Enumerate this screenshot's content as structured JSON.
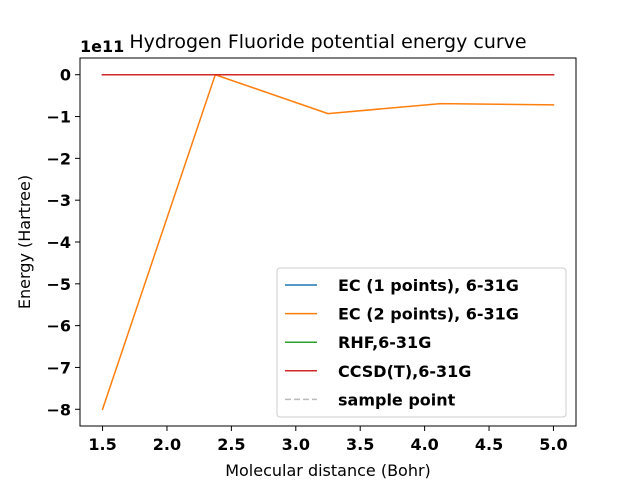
{
  "chart_data": {
    "type": "line",
    "title": "Hydrogen Fluoride potential energy curve",
    "xlabel": "Molecular distance (Bohr)",
    "ylabel": "Energy (Hartree)",
    "y_offset_label": "1e11",
    "xlim": [
      1.325,
      5.175
    ],
    "ylim": [
      -8.4,
      0.4
    ],
    "xticks": [
      1.5,
      2.0,
      2.5,
      3.0,
      3.5,
      4.0,
      4.5,
      5.0
    ],
    "xtick_labels": [
      "1.5",
      "2.0",
      "2.5",
      "3.0",
      "3.5",
      "4.0",
      "4.5",
      "5.0"
    ],
    "yticks": [
      0,
      -1,
      -2,
      -3,
      -4,
      -5,
      -6,
      -7,
      -8
    ],
    "ytick_labels": [
      "0",
      "−1",
      "−2",
      "−3",
      "−4",
      "−5",
      "−6",
      "−7",
      "−8"
    ],
    "grid": false,
    "legend_position": "lower-right",
    "series": [
      {
        "name": "EC (1 points), 6-31G",
        "color": "#1f77b4",
        "style": "solid",
        "x": [
          1.5,
          2.375,
          3.25,
          4.125,
          5.0
        ],
        "y": [
          0,
          0,
          0,
          0,
          0
        ]
      },
      {
        "name": "EC (2 points), 6-31G",
        "color": "#ff7f0e",
        "style": "solid",
        "x": [
          1.5,
          2.375,
          3.25,
          4.125,
          5.0
        ],
        "y": [
          -8.0,
          0.0,
          -0.93,
          -0.69,
          -0.72
        ]
      },
      {
        "name": "RHF,6-31G",
        "color": "#2ca02c",
        "style": "solid",
        "x": [
          1.5,
          2.375,
          3.25,
          4.125,
          5.0
        ],
        "y": [
          0,
          0,
          0,
          0,
          0
        ]
      },
      {
        "name": "CCSD(T),6-31G",
        "color": "#d62728",
        "style": "solid",
        "x": [
          1.5,
          2.375,
          3.25,
          4.125,
          5.0
        ],
        "y": [
          0,
          0,
          0,
          0,
          0
        ]
      },
      {
        "name": "sample point",
        "color": "#bbbbbb",
        "style": "dashed",
        "x": [],
        "y": []
      }
    ]
  }
}
